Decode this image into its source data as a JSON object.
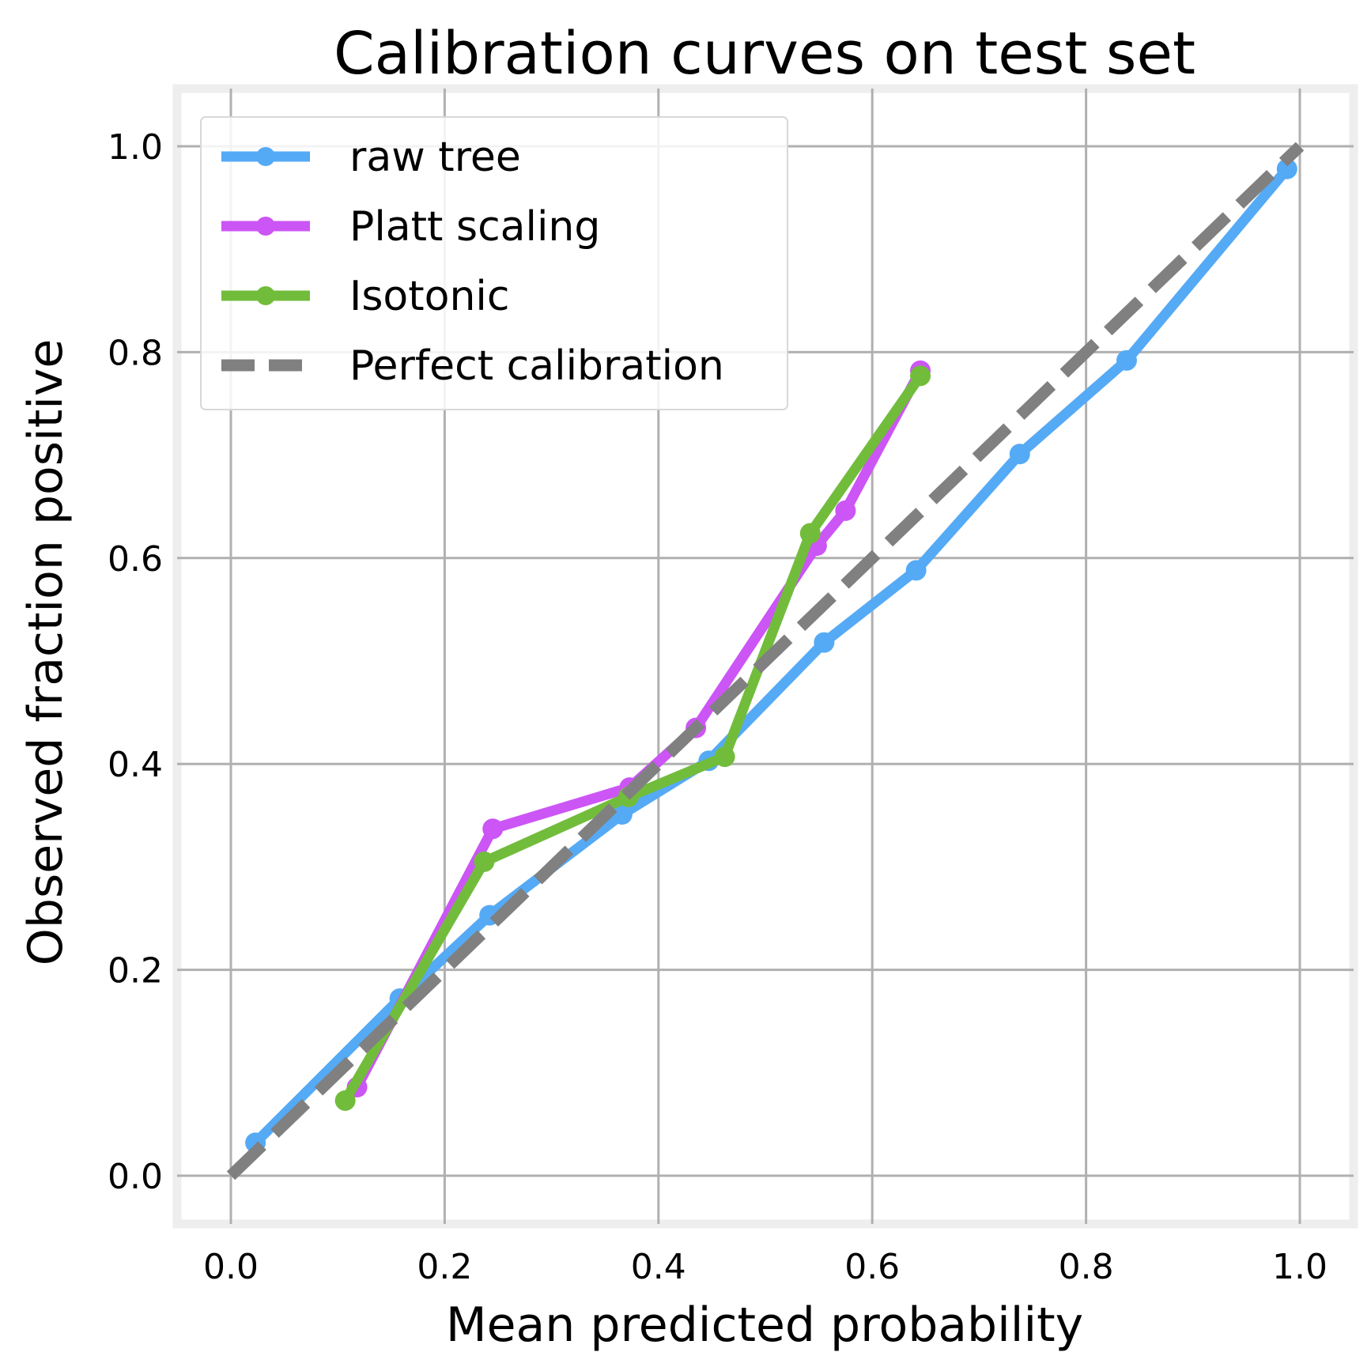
{
  "chart_data": {
    "type": "line",
    "title": "Calibration curves on test set",
    "xlabel": "Mean predicted probability",
    "ylabel": "Observed fraction positive",
    "xlim": [
      -0.05,
      1.045
    ],
    "ylim": [
      -0.05,
      1.05
    ],
    "xticks": [
      "0.0",
      "0.2",
      "0.4",
      "0.6",
      "0.8",
      "1.0"
    ],
    "yticks": [
      "0.0",
      "0.2",
      "0.4",
      "0.6",
      "0.8",
      "1.0"
    ],
    "grid": true,
    "legend_position": "top-left",
    "series": [
      {
        "name": "raw tree",
        "color": "#55aaf5",
        "marker": "circle",
        "dash": "solid",
        "x": [
          0.023,
          0.158,
          0.242,
          0.366,
          0.447,
          0.555,
          0.641,
          0.738,
          0.838,
          0.988
        ],
        "y": [
          0.032,
          0.172,
          0.253,
          0.351,
          0.403,
          0.518,
          0.588,
          0.701,
          0.792,
          0.978
        ]
      },
      {
        "name": "Platt scaling",
        "color": "#cc55f5",
        "marker": "circle",
        "dash": "solid",
        "x": [
          0.118,
          0.245,
          0.373,
          0.435,
          0.548,
          0.575,
          0.645
        ],
        "y": [
          0.086,
          0.337,
          0.377,
          0.435,
          0.612,
          0.646,
          0.782
        ]
      },
      {
        "name": "Isotonic",
        "color": "#72bc3c",
        "marker": "circle",
        "dash": "solid",
        "x": [
          0.107,
          0.237,
          0.372,
          0.462,
          0.542,
          0.645
        ],
        "y": [
          0.073,
          0.305,
          0.368,
          0.407,
          0.624,
          0.777
        ]
      },
      {
        "name": "Perfect calibration",
        "color": "#808080",
        "marker": "none",
        "dash": "dashed",
        "x": [
          0.0,
          1.0
        ],
        "y": [
          0.0,
          1.0
        ]
      }
    ]
  }
}
